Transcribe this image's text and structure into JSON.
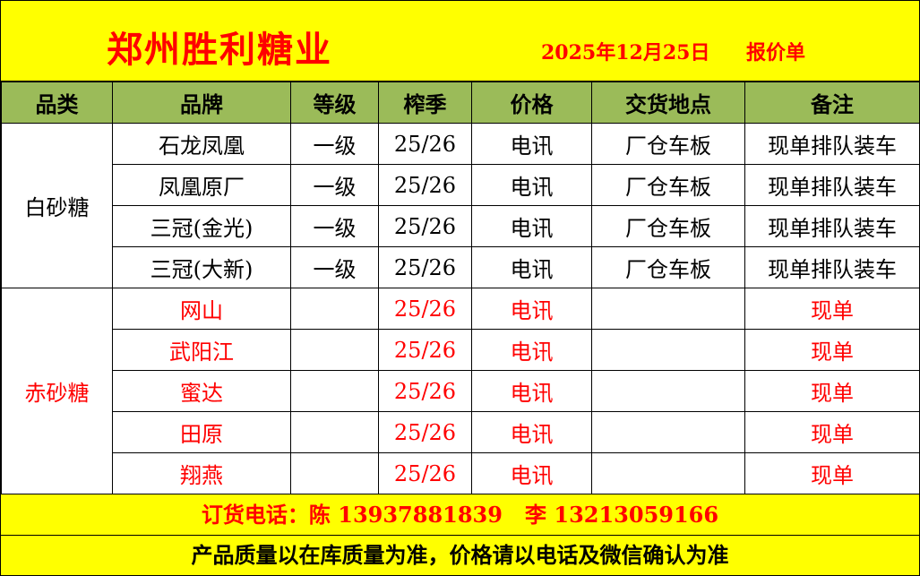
{
  "header": {
    "title": "郑州胜利糖业",
    "date": "2025年12月25日",
    "doc_type": "报价单"
  },
  "columns": [
    "品类",
    "品牌",
    "等级",
    "榨季",
    "价格",
    "交货地点",
    "备注"
  ],
  "groups": [
    {
      "category": "白砂糖",
      "color": "#000000",
      "rows": [
        {
          "brand": "石龙凤凰",
          "grade": "一级",
          "season": "25/26",
          "price": "电讯",
          "delivery": "厂仓车板",
          "remark": "现单排队装车"
        },
        {
          "brand": "凤凰原厂",
          "grade": "一级",
          "season": "25/26",
          "price": "电讯",
          "delivery": "厂仓车板",
          "remark": "现单排队装车"
        },
        {
          "brand": "三冠(金光)",
          "grade": "一级",
          "season": "25/26",
          "price": "电讯",
          "delivery": "厂仓车板",
          "remark": "现单排队装车"
        },
        {
          "brand": "三冠(大新)",
          "grade": "一级",
          "season": "25/26",
          "price": "电讯",
          "delivery": "厂仓车板",
          "remark": "现单排队装车"
        }
      ]
    },
    {
      "category": "赤砂糖",
      "color": "#ff0000",
      "rows": [
        {
          "brand": "网山",
          "grade": "",
          "season": "25/26",
          "price": "电讯",
          "delivery": "",
          "remark": "现单"
        },
        {
          "brand": "武阳江",
          "grade": "",
          "season": "25/26",
          "price": "电讯",
          "delivery": "",
          "remark": "现单"
        },
        {
          "brand": "蜜达",
          "grade": "",
          "season": "25/26",
          "price": "电讯",
          "delivery": "",
          "remark": "现单"
        },
        {
          "brand": "田原",
          "grade": "",
          "season": "25/26",
          "price": "电讯",
          "delivery": "",
          "remark": "现单"
        },
        {
          "brand": "翔燕",
          "grade": "",
          "season": "25/26",
          "price": "电讯",
          "delivery": "",
          "remark": "现单"
        }
      ]
    }
  ],
  "footer": {
    "phone": "订货电话：陈 13937881839   李 13213059166",
    "note": "产品质量以在库质量为准，价格请以电话及微信确认为准"
  },
  "colors": {
    "banner": "#ffff00",
    "header_row": "#9bbb59",
    "accent": "#ff0000"
  }
}
